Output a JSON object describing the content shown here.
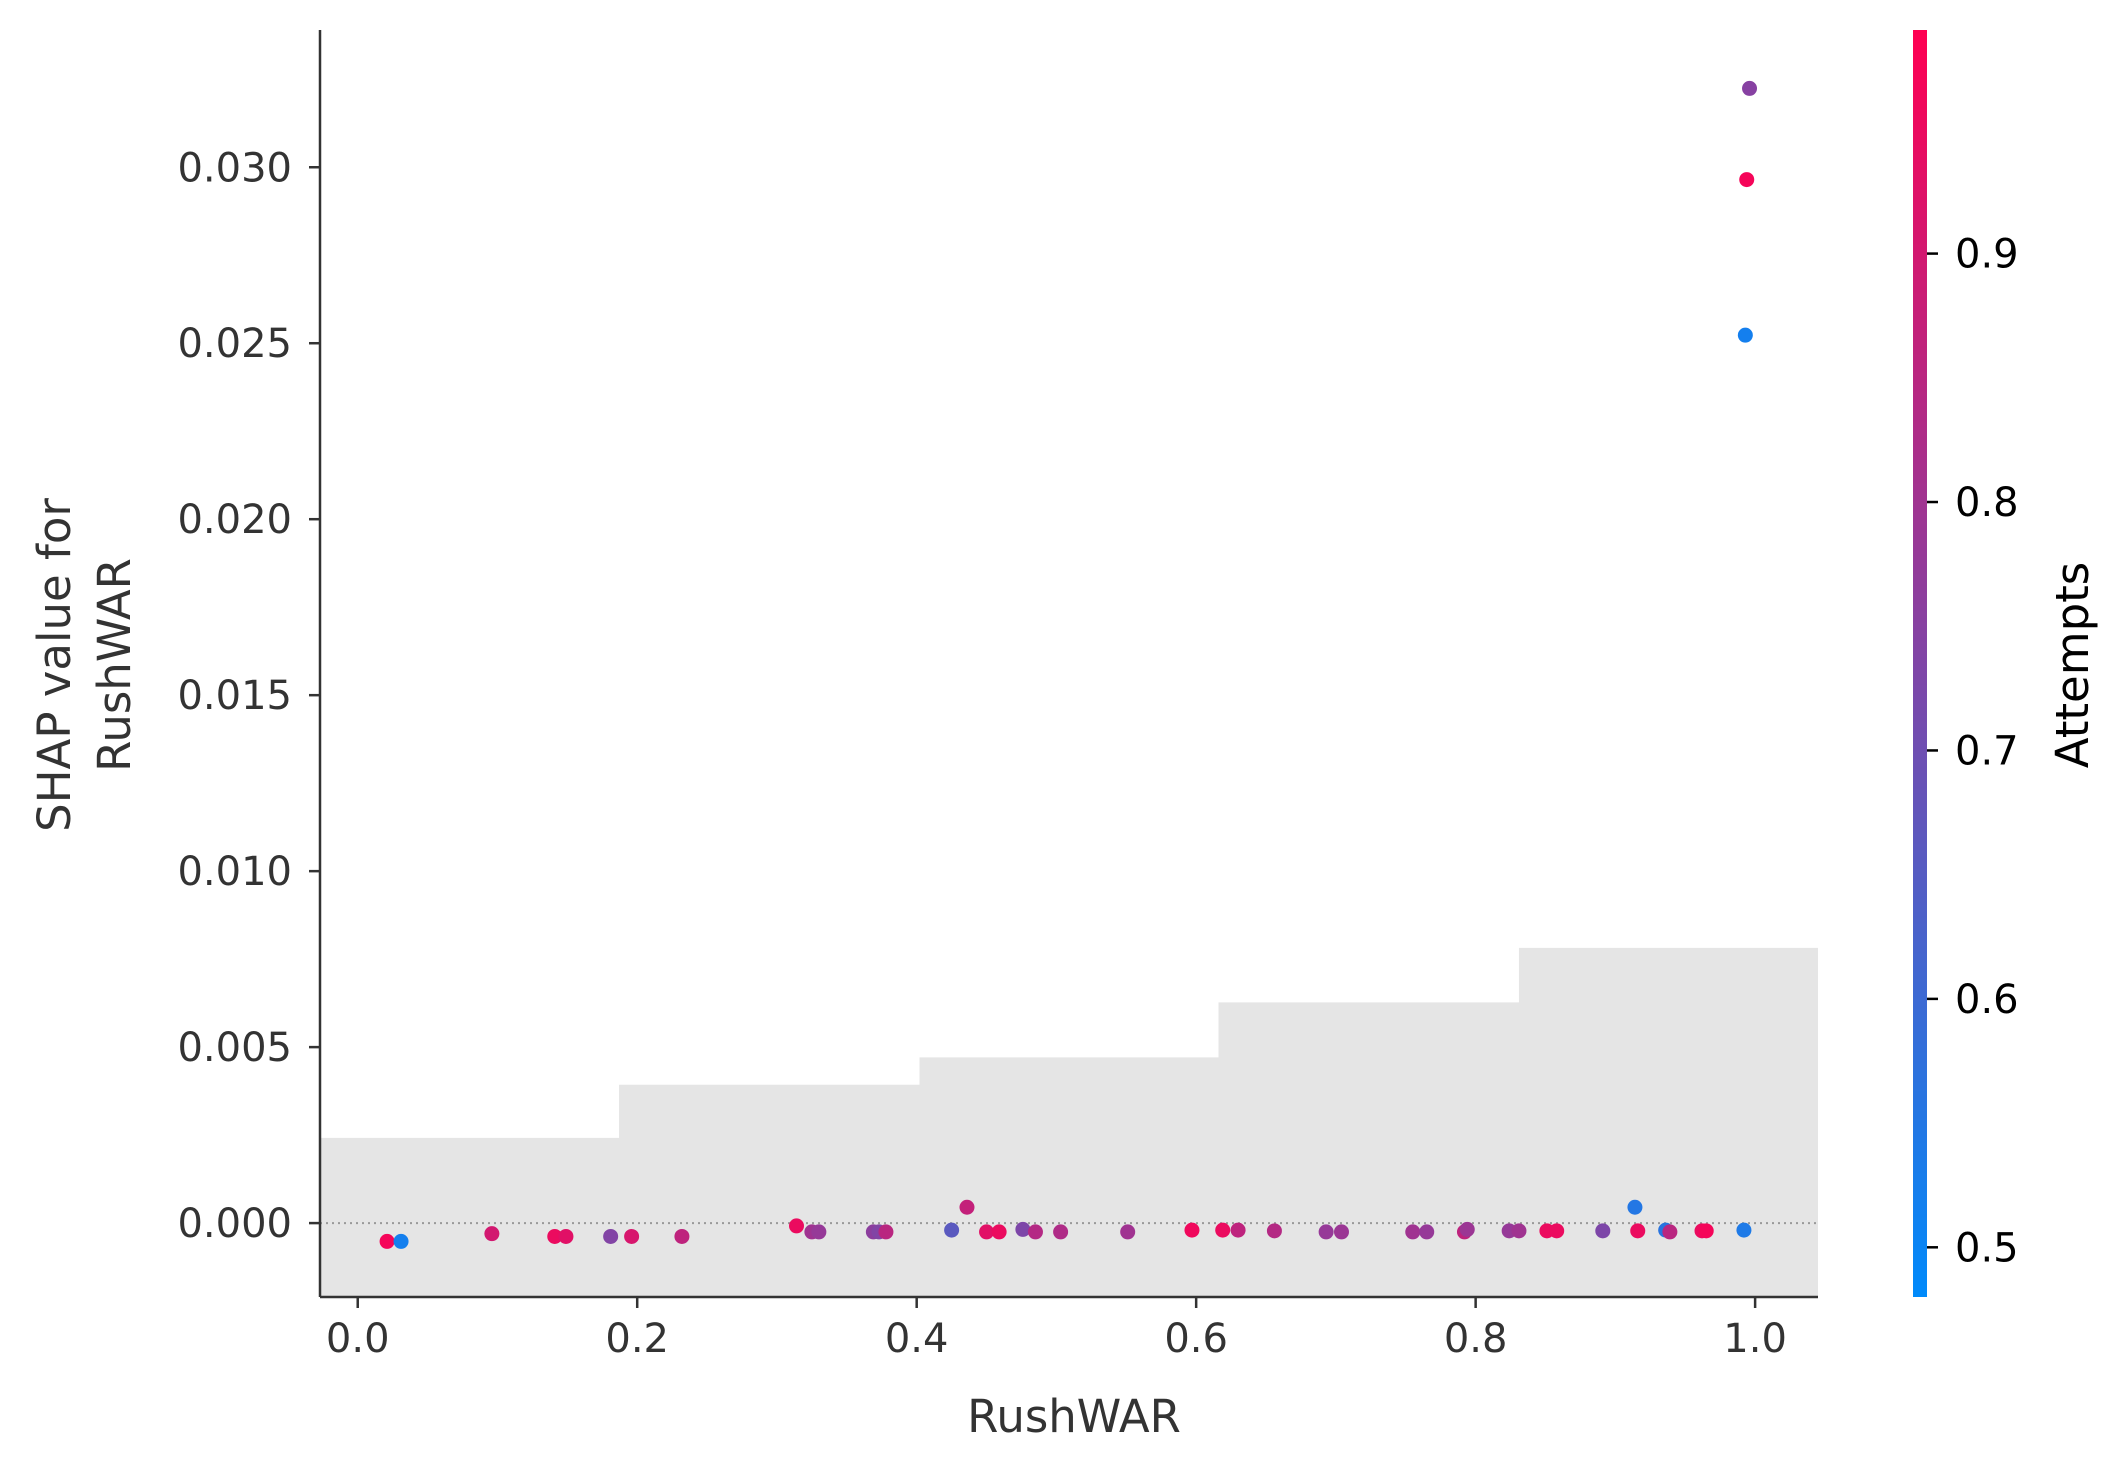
{
  "chart_data": {
    "type": "scatter",
    "title": "",
    "xlabel": "RushWAR",
    "ylabel_lines": [
      "SHAP value for",
      "RushWAR"
    ],
    "xlim": [
      -0.027,
      1.045
    ],
    "ylim": [
      -0.0021,
      0.0339
    ],
    "xticks": [
      0.0,
      0.2,
      0.4,
      0.6,
      0.8,
      1.0
    ],
    "xtick_labels": [
      "0.0",
      "0.2",
      "0.4",
      "0.6",
      "0.8",
      "1.0"
    ],
    "yticks": [
      0.0,
      0.005,
      0.01,
      0.015,
      0.02,
      0.025,
      0.03
    ],
    "ytick_labels": [
      "0.000",
      "0.005",
      "0.010",
      "0.015",
      "0.020",
      "0.025",
      "0.030"
    ],
    "zero_line": true,
    "grid": false,
    "histogram": {
      "color": "#e5e5e5",
      "bin_edges": [
        -0.027,
        0.187,
        0.402,
        0.616,
        0.831,
        1.045
      ],
      "heights": [
        0.00242,
        0.00393,
        0.00471,
        0.00627,
        0.00782
      ]
    },
    "colorbar": {
      "label": "Attempts",
      "range": [
        0.48,
        0.99
      ],
      "ticks": [
        0.5,
        0.6,
        0.7,
        0.8,
        0.9
      ],
      "tick_labels": [
        "0.5",
        "0.6",
        "0.7",
        "0.8",
        "0.9"
      ],
      "colormap": [
        "#008afb",
        "#ff0052"
      ]
    },
    "points": [
      {
        "x": 0.021,
        "y": -0.00052,
        "c": 0.97
      },
      {
        "x": 0.031,
        "y": -0.00052,
        "c": 0.52
      },
      {
        "x": 0.096,
        "y": -0.0003,
        "c": 0.9
      },
      {
        "x": 0.141,
        "y": -0.00038,
        "c": 0.95
      },
      {
        "x": 0.149,
        "y": -0.00038,
        "c": 0.93
      },
      {
        "x": 0.181,
        "y": -0.00038,
        "c": 0.74
      },
      {
        "x": 0.196,
        "y": -0.00038,
        "c": 0.91
      },
      {
        "x": 0.232,
        "y": -0.00038,
        "c": 0.86
      },
      {
        "x": 0.314,
        "y": -8e-05,
        "c": 0.95
      },
      {
        "x": 0.325,
        "y": -0.00025,
        "c": 0.8
      },
      {
        "x": 0.33,
        "y": -0.00025,
        "c": 0.78
      },
      {
        "x": 0.369,
        "y": -0.00025,
        "c": 0.76
      },
      {
        "x": 0.373,
        "y": -0.00025,
        "c": 0.74
      },
      {
        "x": 0.378,
        "y": -0.00025,
        "c": 0.85
      },
      {
        "x": 0.425,
        "y": -0.0002,
        "c": 0.66
      },
      {
        "x": 0.436,
        "y": 0.00045,
        "c": 0.87
      },
      {
        "x": 0.45,
        "y": -0.00025,
        "c": 0.93
      },
      {
        "x": 0.459,
        "y": -0.00025,
        "c": 0.95
      },
      {
        "x": 0.476,
        "y": -0.00018,
        "c": 0.73
      },
      {
        "x": 0.485,
        "y": -0.00025,
        "c": 0.84
      },
      {
        "x": 0.503,
        "y": -0.00025,
        "c": 0.83
      },
      {
        "x": 0.551,
        "y": -0.00025,
        "c": 0.8
      },
      {
        "x": 0.597,
        "y": -0.0002,
        "c": 0.96
      },
      {
        "x": 0.619,
        "y": -0.0002,
        "c": 0.95
      },
      {
        "x": 0.63,
        "y": -0.0002,
        "c": 0.86
      },
      {
        "x": 0.656,
        "y": -0.00022,
        "c": 0.84
      },
      {
        "x": 0.693,
        "y": -0.00025,
        "c": 0.78
      },
      {
        "x": 0.704,
        "y": -0.00025,
        "c": 0.79
      },
      {
        "x": 0.755,
        "y": -0.00025,
        "c": 0.8
      },
      {
        "x": 0.765,
        "y": -0.00025,
        "c": 0.78
      },
      {
        "x": 0.792,
        "y": -0.00025,
        "c": 0.86
      },
      {
        "x": 0.794,
        "y": -0.00018,
        "c": 0.79
      },
      {
        "x": 0.824,
        "y": -0.00022,
        "c": 0.78
      },
      {
        "x": 0.831,
        "y": -0.00022,
        "c": 0.8
      },
      {
        "x": 0.851,
        "y": -0.00022,
        "c": 0.95
      },
      {
        "x": 0.858,
        "y": -0.00022,
        "c": 0.95
      },
      {
        "x": 0.891,
        "y": -0.00022,
        "c": 0.73
      },
      {
        "x": 0.914,
        "y": 0.00045,
        "c": 0.55
      },
      {
        "x": 0.916,
        "y": -0.00022,
        "c": 0.95
      },
      {
        "x": 0.936,
        "y": -0.0002,
        "c": 0.56
      },
      {
        "x": 0.939,
        "y": -0.00025,
        "c": 0.85
      },
      {
        "x": 0.962,
        "y": -0.00022,
        "c": 0.95
      },
      {
        "x": 0.965,
        "y": -0.00022,
        "c": 0.97
      },
      {
        "x": 0.992,
        "y": -0.0002,
        "c": 0.54
      },
      {
        "x": 0.993,
        "y": 0.02523,
        "c": 0.52
      },
      {
        "x": 0.994,
        "y": 0.02965,
        "c": 0.97
      },
      {
        "x": 0.996,
        "y": 0.03224,
        "c": 0.75
      }
    ]
  }
}
